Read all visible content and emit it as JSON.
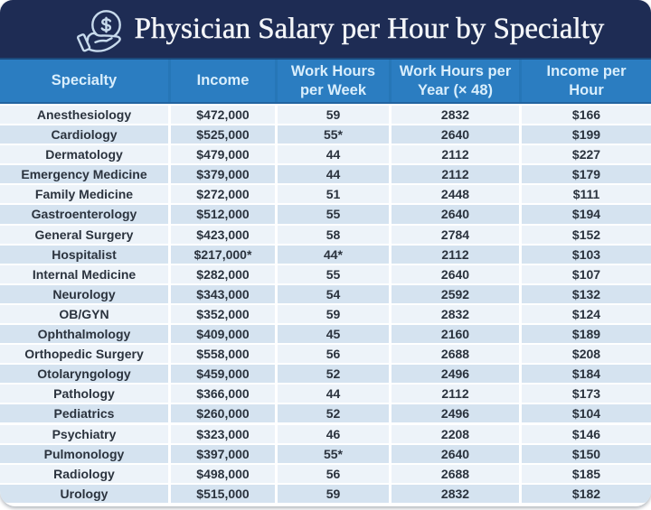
{
  "header": {
    "title": "Physician Salary per Hour by Specialty",
    "icon": "hand-coin-dollar-icon"
  },
  "colors": {
    "title_bar_background": "#1e2c54",
    "title_text": "#f3f5f8",
    "table_header_background": "#2b7dc1",
    "table_header_text": "#d9eefc",
    "row_light_background": "#edf3f9",
    "row_shaded_background": "#d5e3f0",
    "row_text": "#2b333e",
    "icon_stroke": "#c7daec"
  },
  "table": {
    "columns": [
      "Specialty",
      "Income",
      "Work Hours\nper Week",
      "Work Hours per\nYear (× 48)",
      "Income per\nHour"
    ],
    "rows": [
      [
        "Anesthesiology",
        "$472,000",
        "59",
        "2832",
        "$166"
      ],
      [
        "Cardiology",
        "$525,000",
        "55*",
        "2640",
        "$199"
      ],
      [
        "Dermatology",
        "$479,000",
        "44",
        "2112",
        "$227"
      ],
      [
        "Emergency Medicine",
        "$379,000",
        "44",
        "2112",
        "$179"
      ],
      [
        "Family Medicine",
        "$272,000",
        "51",
        "2448",
        "$111"
      ],
      [
        "Gastroenterology",
        "$512,000",
        "55",
        "2640",
        "$194"
      ],
      [
        "General Surgery",
        "$423,000",
        "58",
        "2784",
        "$152"
      ],
      [
        "Hospitalist",
        "$217,000*",
        "44*",
        "2112",
        "$103"
      ],
      [
        "Internal Medicine",
        "$282,000",
        "55",
        "2640",
        "$107"
      ],
      [
        "Neurology",
        "$343,000",
        "54",
        "2592",
        "$132"
      ],
      [
        "OB/GYN",
        "$352,000",
        "59",
        "2832",
        "$124"
      ],
      [
        "Ophthalmology",
        "$409,000",
        "45",
        "2160",
        "$189"
      ],
      [
        "Orthopedic Surgery",
        "$558,000",
        "56",
        "2688",
        "$208"
      ],
      [
        "Otolaryngology",
        "$459,000",
        "52",
        "2496",
        "$184"
      ],
      [
        "Pathology",
        "$366,000",
        "44",
        "2112",
        "$173"
      ],
      [
        "Pediatrics",
        "$260,000",
        "52",
        "2496",
        "$104"
      ],
      [
        "Psychiatry",
        "$323,000",
        "46",
        "2208",
        "$146"
      ],
      [
        "Pulmonology",
        "$397,000",
        "55*",
        "2640",
        "$150"
      ],
      [
        "Radiology",
        "$498,000",
        "56",
        "2688",
        "$185"
      ],
      [
        "Urology",
        "$515,000",
        "59",
        "2832",
        "$182"
      ]
    ]
  },
  "chart_data": {
    "type": "table",
    "title": "Physician Salary per Hour by Specialty",
    "columns": [
      "Specialty",
      "Income",
      "Work Hours per Week",
      "Work Hours per Year (× 48)",
      "Income per Hour"
    ],
    "rows": [
      [
        "Anesthesiology",
        "$472,000",
        "59",
        "2832",
        "$166"
      ],
      [
        "Cardiology",
        "$525,000",
        "55*",
        "2640",
        "$199"
      ],
      [
        "Dermatology",
        "$479,000",
        "44",
        "2112",
        "$227"
      ],
      [
        "Emergency Medicine",
        "$379,000",
        "44",
        "2112",
        "$179"
      ],
      [
        "Family Medicine",
        "$272,000",
        "51",
        "2448",
        "$111"
      ],
      [
        "Gastroenterology",
        "$512,000",
        "55",
        "2640",
        "$194"
      ],
      [
        "General Surgery",
        "$423,000",
        "58",
        "2784",
        "$152"
      ],
      [
        "Hospitalist",
        "$217,000*",
        "44*",
        "2112",
        "$103"
      ],
      [
        "Internal Medicine",
        "$282,000",
        "55",
        "2640",
        "$107"
      ],
      [
        "Neurology",
        "$343,000",
        "54",
        "2592",
        "$132"
      ],
      [
        "OB/GYN",
        "$352,000",
        "59",
        "2832",
        "$124"
      ],
      [
        "Ophthalmology",
        "$409,000",
        "45",
        "2160",
        "$189"
      ],
      [
        "Orthopedic Surgery",
        "$558,000",
        "56",
        "2688",
        "$208"
      ],
      [
        "Otolaryngology",
        "$459,000",
        "52",
        "2496",
        "$184"
      ],
      [
        "Pathology",
        "$366,000",
        "44",
        "2112",
        "$173"
      ],
      [
        "Pediatrics",
        "$260,000",
        "52",
        "2496",
        "$104"
      ],
      [
        "Psychiatry",
        "$323,000",
        "46",
        "2208",
        "$146"
      ],
      [
        "Pulmonology",
        "$397,000",
        "55*",
        "2640",
        "$150"
      ],
      [
        "Radiology",
        "$498,000",
        "56",
        "2688",
        "$185"
      ],
      [
        "Urology",
        "$515,000",
        "59",
        "2832",
        "$182"
      ]
    ]
  }
}
